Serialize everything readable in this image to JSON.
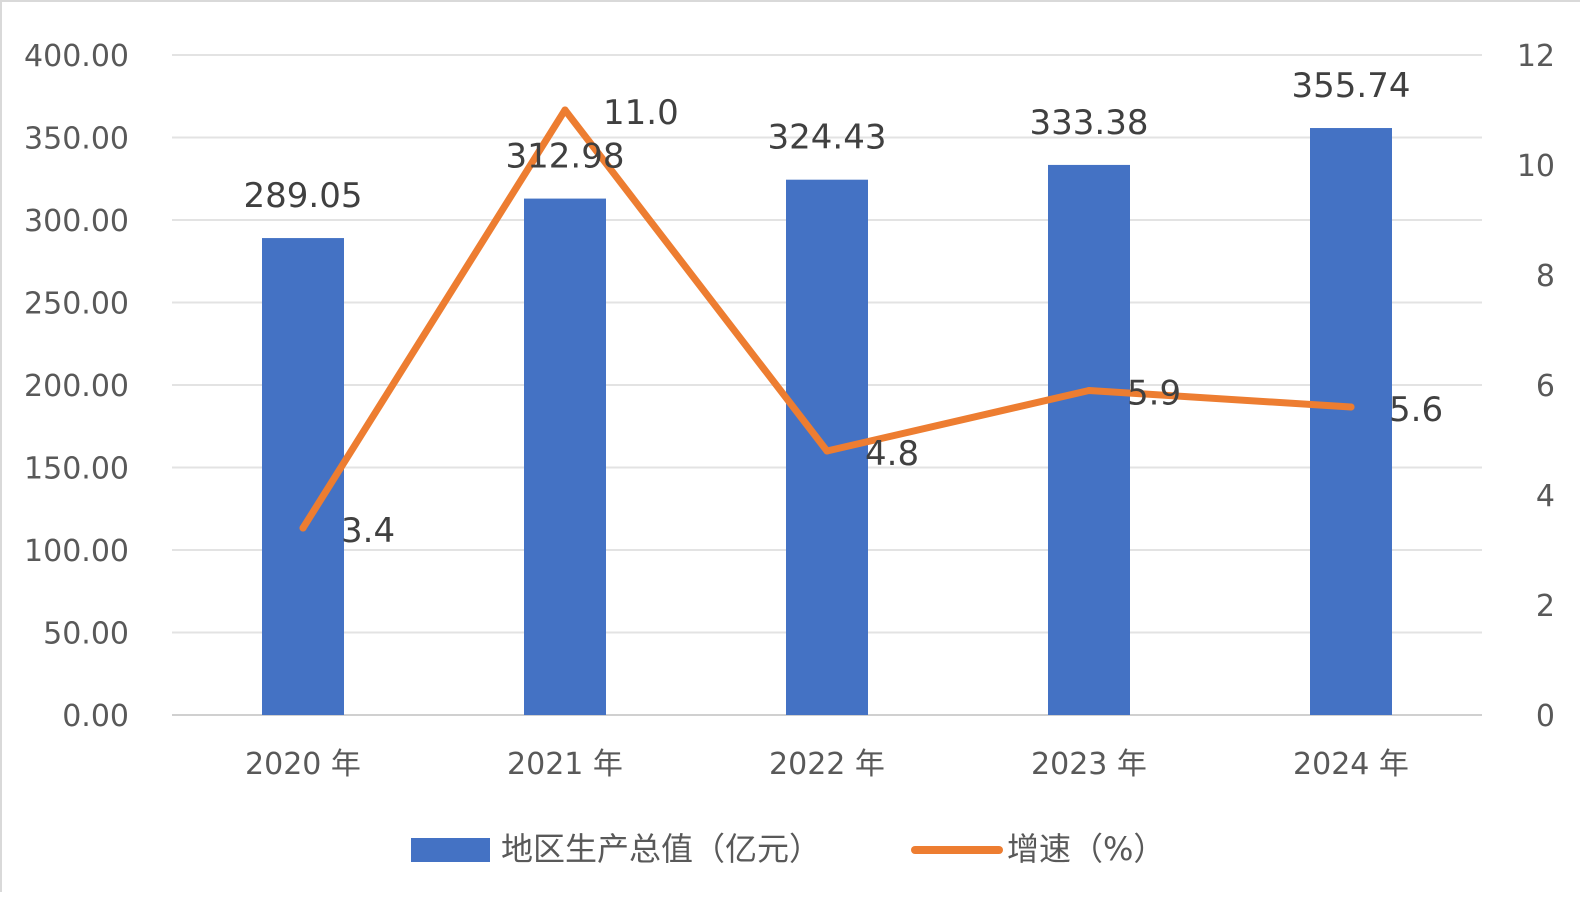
{
  "chart_data": {
    "type": "bar",
    "categories": [
      "2020 年",
      "2021 年",
      "2022 年",
      "2023 年",
      "2024 年"
    ],
    "series": [
      {
        "name": "地区生产总值（亿元）",
        "type": "bar",
        "axis": "left",
        "values": [
          289.05,
          312.98,
          324.43,
          333.38,
          355.74
        ],
        "labels": [
          "289.05",
          "312.98",
          "324.43",
          "333.38",
          "355.74"
        ],
        "color": "#4472C4"
      },
      {
        "name": "增速（%）",
        "type": "line",
        "axis": "right",
        "values": [
          3.4,
          11.0,
          4.8,
          5.9,
          5.6
        ],
        "labels": [
          "3.4",
          "11.0",
          "4.8",
          "5.9",
          "5.6"
        ],
        "color": "#ED7D31"
      }
    ],
    "y_left": {
      "ylim": [
        0,
        400
      ],
      "ticks": [
        "0.00",
        "50.00",
        "100.00",
        "150.00",
        "200.00",
        "250.00",
        "300.00",
        "350.00",
        "400.00"
      ]
    },
    "y_right": {
      "ylim": [
        0,
        12
      ],
      "ticks": [
        "0",
        "2",
        "4",
        "6",
        "8",
        "10",
        "12"
      ]
    },
    "grid": true,
    "legend": "bottom"
  }
}
